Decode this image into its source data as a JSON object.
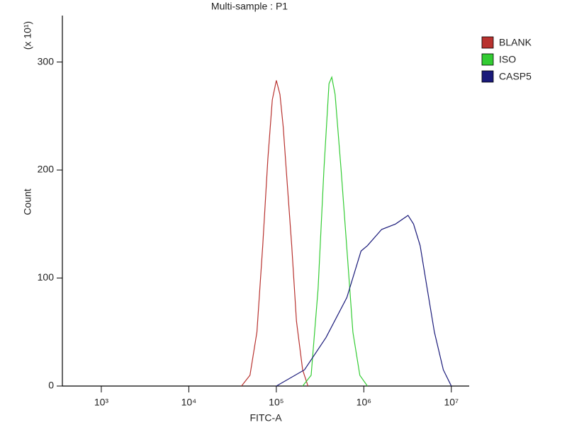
{
  "chart_data": {
    "type": "line",
    "title": "Multi-sample : P1",
    "x_label": "FITC-A",
    "y_label": "Count",
    "y_multiplier": "(x 10¹)",
    "log_x": true,
    "legend": "upper right",
    "xlim": [
      359,
      16000000
    ],
    "ylim": [
      0,
      343
    ],
    "xticks": [
      {
        "value": 1000,
        "label": "10³"
      },
      {
        "value": 10000,
        "label": "10⁴"
      },
      {
        "value": 100000,
        "label": "10⁵"
      },
      {
        "value": 1000000,
        "label": "10⁶"
      },
      {
        "value": 10000000,
        "label": "10⁷"
      }
    ],
    "yticks": [
      0,
      100,
      200,
      300
    ],
    "series": [
      {
        "name": "BLANK",
        "color": "#b8322f",
        "x": [
          40000,
          50000,
          60000,
          70000,
          80000,
          90000,
          100000,
          110000,
          120000,
          130000,
          150000,
          170000,
          200000,
          230000
        ],
        "values": [
          0,
          10,
          50,
          130,
          210,
          265,
          283,
          270,
          240,
          200,
          130,
          60,
          15,
          0
        ]
      },
      {
        "name": "ISO",
        "color": "#33cc33",
        "x": [
          200000,
          250000,
          300000,
          350000,
          400000,
          430000,
          470000,
          550000,
          650000,
          750000,
          900000,
          1100000
        ],
        "values": [
          0,
          10,
          90,
          200,
          280,
          286,
          270,
          200,
          120,
          50,
          10,
          0
        ]
      },
      {
        "name": "CASP5",
        "color": "#1a1a7a",
        "x": [
          100000,
          210000,
          370000,
          640000,
          930000,
          1100000,
          1600000,
          2300000,
          3200000,
          3700000,
          4400000,
          5300000,
          6400000,
          8100000,
          10000000
        ],
        "values": [
          0,
          15,
          45,
          82,
          125,
          130,
          145,
          150,
          158,
          150,
          130,
          90,
          50,
          15,
          0
        ]
      }
    ]
  }
}
